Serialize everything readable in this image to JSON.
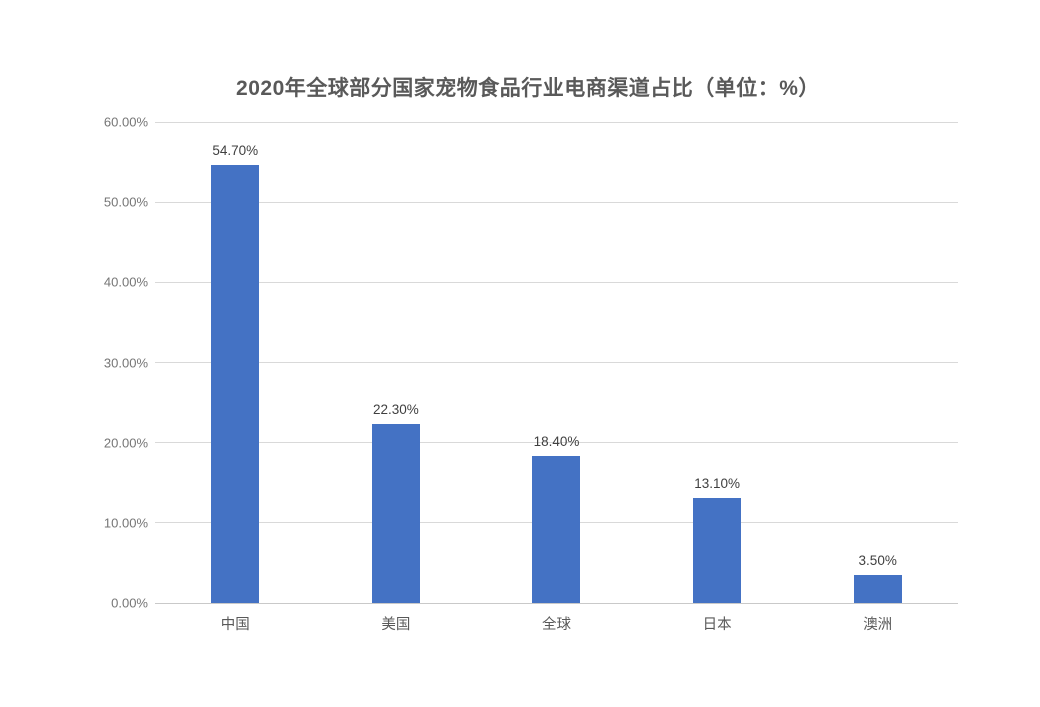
{
  "chart_data": {
    "type": "bar",
    "title": "2020年全球部分国家宠物食品行业电商渠道占比（单位：%）",
    "categories": [
      "中国",
      "美国",
      "全球",
      "日本",
      "澳洲"
    ],
    "values": [
      54.7,
      22.3,
      18.4,
      13.1,
      3.5
    ],
    "data_labels": [
      "54.70%",
      "22.30%",
      "18.40%",
      "13.10%",
      "3.50%"
    ],
    "y_ticks": [
      "60.00%",
      "50.00%",
      "40.00%",
      "30.00%",
      "20.00%",
      "10.00%",
      "0.00%"
    ],
    "ylim": [
      0,
      60
    ],
    "xlabel": "",
    "ylabel": "",
    "grid": "horizontal",
    "legend": "none",
    "colors": {
      "bar": "#4472C4",
      "gridline": "#D9D9D9",
      "axis_line": "#C9C9C9",
      "title_text": "#595959",
      "tick_text": "#757575",
      "data_label_text": "#3F3F3F",
      "category_text": "#595959",
      "background": "#FFFFFF"
    }
  }
}
